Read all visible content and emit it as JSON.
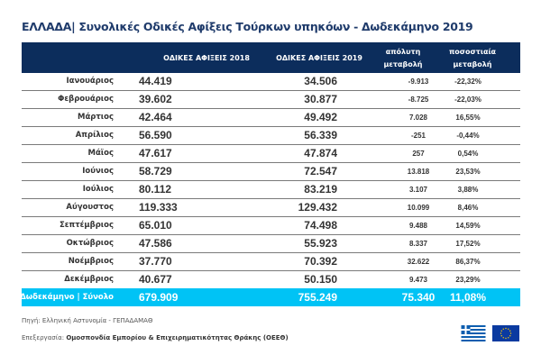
{
  "title": "ΕΛΛΑΔΑ| Συνολικές Οδικές Αφίξεις Τούρκων υπηκόων - Δωδεκάμηνο 2019",
  "header": {
    "col_month": "",
    "col_2018": "ΟΔΙΚΕΣ ΑΦΙΞΕΙΣ 2018",
    "col_2019": "ΟΔΙΚΕΣ ΑΦΙΞΕΙΣ  2019",
    "col_abs": "απόλυτη μεταβολή",
    "col_pct": "ποσοστιαία μεταβολή"
  },
  "rows": [
    {
      "month": "Ιανουάριος",
      "y2018": "44.419",
      "y2019": "34.506",
      "abs": "-9.913",
      "pct": "-22,32%"
    },
    {
      "month": "Φεβρουάριος",
      "y2018": "39.602",
      "y2019": "30.877",
      "abs": "-8.725",
      "pct": "-22,03%"
    },
    {
      "month": "Μάρτιος",
      "y2018": "42.464",
      "y2019": "49.492",
      "abs": "7.028",
      "pct": "16,55%"
    },
    {
      "month": "Απρίλιος",
      "y2018": "56.590",
      "y2019": "56.339",
      "abs": "-251",
      "pct": "-0,44%"
    },
    {
      "month": "Μάϊος",
      "y2018": "47.617",
      "y2019": "47.874",
      "abs": "257",
      "pct": "0,54%"
    },
    {
      "month": "Ιούνιος",
      "y2018": "58.729",
      "y2019": "72.547",
      "abs": "13.818",
      "pct": "23,53%"
    },
    {
      "month": "Ιούλιος",
      "y2018": "80.112",
      "y2019": "83.219",
      "abs": "3.107",
      "pct": "3,88%"
    },
    {
      "month": "Αύγουστος",
      "y2018": "119.333",
      "y2019": "129.432",
      "abs": "10.099",
      "pct": "8,46%"
    },
    {
      "month": "Σεπτέμβριος",
      "y2018": "65.010",
      "y2019": "74.498",
      "abs": "9.488",
      "pct": "14,59%"
    },
    {
      "month": "Οκτώβριος",
      "y2018": "47.586",
      "y2019": "55.923",
      "abs": "8.337",
      "pct": "17,52%"
    },
    {
      "month": "Νοέμβριος",
      "y2018": "37.770",
      "y2019": "70.392",
      "abs": "32.622",
      "pct": "86,37%"
    },
    {
      "month": "Δεκέμβριος",
      "y2018": "40.677",
      "y2019": "50.150",
      "abs": "9.473",
      "pct": "23,29%"
    }
  ],
  "total": {
    "label": "Δωδεκάμηνο | Σύνολο",
    "y2018": "679.909",
    "y2019": "755.249",
    "abs": "75.340",
    "pct": "11,08%"
  },
  "footer": {
    "source": "Πηγή: Ελληνική Αστυνομία - ΓΕΠΑΔΑΜΑΘ",
    "processing_label": "Επεξεργασία: ",
    "processing_org": "Ομοσπονδία Εμπορίου & Επιχειρηματικότητας Θράκης (ΟΕΕΘ)"
  },
  "colors": {
    "header_bg": "#0c2d5c",
    "total_bg": "#00c3f5",
    "title": "#1f3b6b"
  },
  "icons": [
    "greek-flag-icon",
    "eu-flag-icon"
  ]
}
